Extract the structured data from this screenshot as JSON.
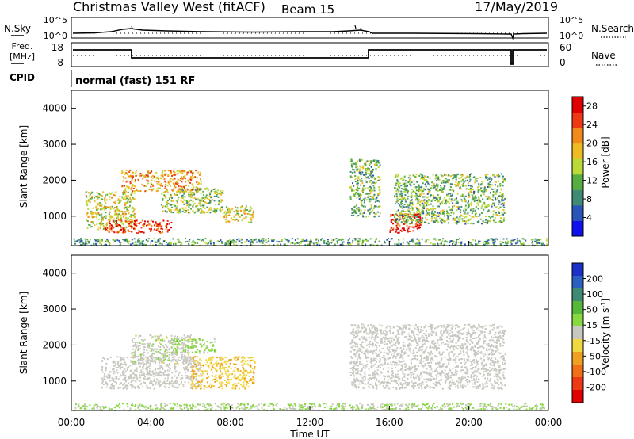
{
  "header": {
    "station": "Christmas Valley West (fitACF)",
    "beam": "Beam 15",
    "date": "17/May/2019"
  },
  "noise_panel": {
    "left_label": "N.Sky",
    "right_label": "N.Search",
    "left_ticks": [
      "10^5",
      "10^0"
    ],
    "right_ticks": [
      "10^5",
      "10^0"
    ]
  },
  "freq_panel": {
    "left_label_line1": "Freq.",
    "left_label_line2": "[MHz]",
    "right_label": "Nave",
    "left_ticks": [
      "18",
      "8"
    ],
    "right_ticks": [
      "60",
      "0"
    ]
  },
  "cpid": {
    "label": "CPID",
    "value": "normal (fast) 151 RF"
  },
  "x_axis": {
    "title": "Time UT",
    "ticks": [
      "00:00",
      "04:00",
      "08:00",
      "12:00",
      "16:00",
      "20:00",
      "00:00"
    ]
  },
  "power_colorbar": {
    "title": "Power [dB]",
    "ticks": [
      "28",
      "24",
      "20",
      "16",
      "12",
      "8",
      "4"
    ],
    "colors": [
      "#1010ee",
      "#2a55b8",
      "#3e8a74",
      "#56ad42",
      "#bada38",
      "#eebb22",
      "#f18a1a",
      "#ee3a14",
      "#e00000"
    ]
  },
  "velocity_colorbar": {
    "title": "Velocity [m s^-1]",
    "ticks": [
      "200",
      "100",
      "50",
      "15",
      "-15",
      "-50",
      "-100",
      "-200"
    ],
    "colors": [
      "#1a30c8",
      "#2a60c0",
      "#3e8a74",
      "#56b83a",
      "#88d840",
      "#c8c8c0",
      "#f0d840",
      "#f0a020",
      "#f07018",
      "#ee3a14",
      "#e00000"
    ]
  },
  "chart_data": [
    {
      "type": "heatmap",
      "title": "Power",
      "xlabel": "",
      "ylabel": "Slant Range [km]",
      "x_range_hours_ut": [
        0,
        24
      ],
      "ylim_km": [
        180,
        4500
      ],
      "yticks": [
        "1000",
        "2000",
        "3000",
        "4000"
      ],
      "colorbar": {
        "label": "Power [dB]",
        "range": [
          0,
          30
        ],
        "ticks": [
          4,
          8,
          12,
          16,
          20,
          24,
          28
        ]
      },
      "scatter_regions": [
        {
          "t_start": 0.7,
          "t_end": 3.2,
          "r_min": 650,
          "r_max": 1700,
          "value": 16
        },
        {
          "t_start": 1.6,
          "t_end": 5.0,
          "r_min": 550,
          "r_max": 900,
          "value": 26
        },
        {
          "t_start": 2.5,
          "t_end": 6.5,
          "r_min": 1700,
          "r_max": 2300,
          "value": 20
        },
        {
          "t_start": 4.5,
          "t_end": 7.6,
          "r_min": 1100,
          "r_max": 1800,
          "value": 14
        },
        {
          "t_start": 7.6,
          "t_end": 9.2,
          "r_min": 850,
          "r_max": 1300,
          "value": 16
        },
        {
          "t_start": 14.0,
          "t_end": 15.5,
          "r_min": 1000,
          "r_max": 2600,
          "value": 12
        },
        {
          "t_start": 16.0,
          "t_end": 17.6,
          "r_min": 550,
          "r_max": 1100,
          "value": 28
        },
        {
          "t_start": 16.2,
          "t_end": 21.8,
          "r_min": 800,
          "r_max": 2200,
          "value": 12
        },
        {
          "t_start": 0.1,
          "t_end": 23.9,
          "r_min": 200,
          "r_max": 400,
          "value": 10
        }
      ]
    },
    {
      "type": "heatmap",
      "title": "Velocity",
      "xlabel": "Time UT",
      "ylabel": "Slant Range [km]",
      "x_range_hours_ut": [
        0,
        24
      ],
      "ylim_km": [
        180,
        4500
      ],
      "yticks": [
        "1000",
        "2000",
        "3000",
        "4000"
      ],
      "colorbar": {
        "label": "Velocity [m s^-1]",
        "range": [
          -250,
          250
        ],
        "ticks": [
          200,
          100,
          50,
          15,
          -15,
          -50,
          -100,
          -200
        ]
      },
      "scatter_regions": [
        {
          "t_start": 1.5,
          "t_end": 6.5,
          "r_min": 800,
          "r_max": 1700,
          "value": 0
        },
        {
          "t_start": 3.0,
          "t_end": 6.0,
          "r_min": 1500,
          "r_max": 2300,
          "value": 5
        },
        {
          "t_start": 5.0,
          "t_end": 7.2,
          "r_min": 1800,
          "r_max": 2200,
          "value": 40
        },
        {
          "t_start": 6.0,
          "t_end": 9.2,
          "r_min": 800,
          "r_max": 1700,
          "value": -60
        },
        {
          "t_start": 14.0,
          "t_end": 21.8,
          "r_min": 800,
          "r_max": 2600,
          "value": 0
        },
        {
          "t_start": 0.1,
          "t_end": 23.9,
          "r_min": 200,
          "r_max": 400,
          "value": 30
        }
      ]
    }
  ]
}
